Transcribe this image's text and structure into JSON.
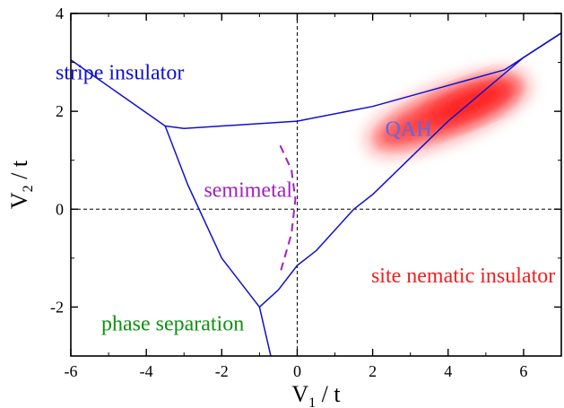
{
  "chart_data": {
    "type": "line",
    "title": "",
    "xlabel": {
      "main": "V",
      "sub": "1",
      "rest": " / t"
    },
    "ylabel": {
      "main": "V",
      "sub": "2",
      "rest": " / t"
    },
    "xlim": [
      -6,
      7
    ],
    "ylim": [
      -3,
      4
    ],
    "xticks": [
      -6,
      -4,
      -2,
      0,
      2,
      4,
      6
    ],
    "yticks": [
      -2,
      0,
      2,
      4
    ],
    "reference_lines": {
      "x": 0,
      "y": 0,
      "style": "dashed",
      "color": "#000000"
    },
    "series": [
      {
        "color": "#1010d0",
        "points": [
          [
            -6,
            3.05
          ],
          [
            -3.5,
            1.7
          ],
          [
            -3,
            1.65
          ],
          [
            0,
            1.8
          ],
          [
            2,
            2.1
          ],
          [
            5.5,
            2.85
          ],
          [
            7,
            3.6
          ]
        ]
      },
      {
        "color": "#1010d0",
        "points": [
          [
            -3.5,
            1.7
          ],
          [
            -2.9,
            0.5
          ],
          [
            -2,
            -1.0
          ],
          [
            -1.0,
            -2.0
          ],
          [
            -0.7,
            -3.0
          ]
        ]
      },
      {
        "color": "#1010d0",
        "points": [
          [
            -1.0,
            -2.0
          ],
          [
            -0.5,
            -1.65
          ],
          [
            0,
            -1.15
          ],
          [
            0.5,
            -0.85
          ],
          [
            1.5,
            0
          ],
          [
            2,
            0.3
          ],
          [
            4,
            1.8
          ],
          [
            6,
            3.1
          ],
          [
            7,
            3.6
          ]
        ]
      },
      {
        "color": "#a020c0",
        "dashed": true,
        "points": [
          [
            -0.45,
            1.3
          ],
          [
            -0.15,
            0.8
          ],
          [
            -0.05,
            0.2
          ],
          [
            -0.15,
            -0.5
          ],
          [
            -0.45,
            -1.3
          ]
        ]
      }
    ],
    "shaded_region": {
      "label": "QAH",
      "color": "#ff2020",
      "center": [
        3.6,
        1.85
      ],
      "semi_major": 2.2,
      "semi_minor": 0.35,
      "angle_deg": 22
    },
    "regions": [
      {
        "label": "stripe insulator",
        "x": -4.7,
        "y": 2.75,
        "color": "#1010d0",
        "size": 24
      },
      {
        "label": "QAH",
        "x": 2.95,
        "y": 1.6,
        "color": "#5a6ae8",
        "size": 22
      },
      {
        "label": "semimetal",
        "x": -1.3,
        "y": 0.35,
        "color": "#a020c0",
        "size": 16
      },
      {
        "label": "site nematic insulator",
        "x": 4.4,
        "y": -1.4,
        "color": "#ee2020",
        "size": 24
      },
      {
        "label": "phase separation",
        "x": -3.3,
        "y": -2.38,
        "color": "#109010",
        "size": 24
      }
    ]
  }
}
